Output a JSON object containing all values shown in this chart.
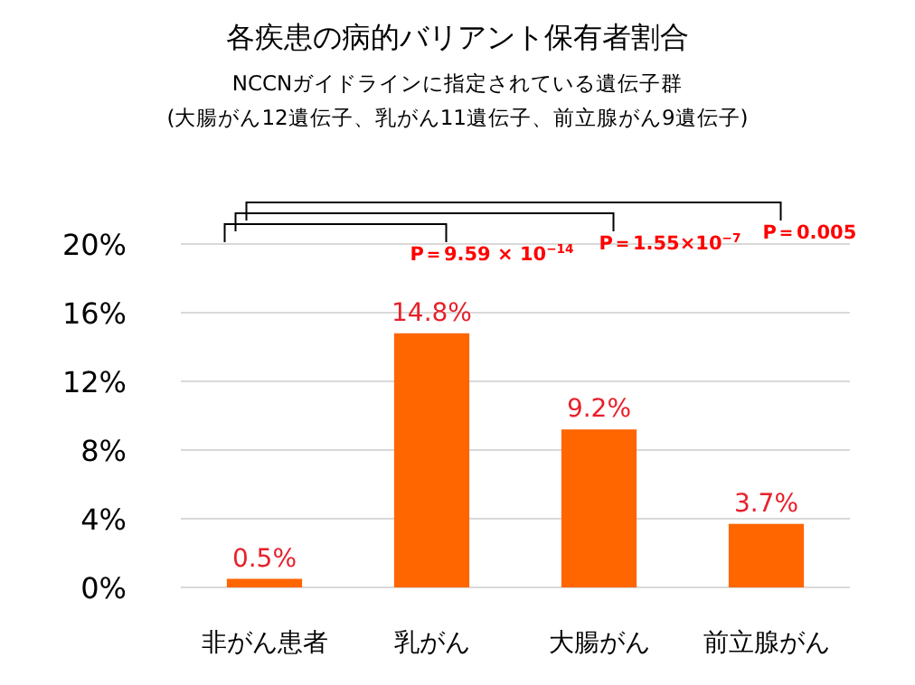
{
  "chart_data": {
    "type": "bar",
    "title": "各疾患の病的バリアント保有者割合",
    "subtitle": "NCCNガイドラインに指定されている遺伝子群\n(大腸がん12遺伝子、乳がん11遺伝子、前立腺がん9遺伝子)",
    "categories": [
      "非がん患者",
      "乳がん",
      "大腸がん",
      "前立腺がん"
    ],
    "values": [
      0.5,
      14.8,
      9.2,
      3.7
    ],
    "value_labels": [
      "0.5%",
      "14.8%",
      "9.2%",
      "3.7%"
    ],
    "color": "#ff6600",
    "ylim": [
      0,
      20
    ],
    "yticks": [
      {
        "value": 0,
        "label": "0%"
      },
      {
        "value": 4,
        "label": "4%"
      },
      {
        "value": 8,
        "label": "8%"
      },
      {
        "value": 12,
        "label": "12%"
      },
      {
        "value": 16,
        "label": "16%"
      },
      {
        "value": 20,
        "label": "20%"
      }
    ],
    "grid": "y",
    "annotations": [
      "P＝9.59 × 10$^{−14}$",
      "P＝1.55×10$^{−7}$",
      "P＝0.005"
    ]
  }
}
